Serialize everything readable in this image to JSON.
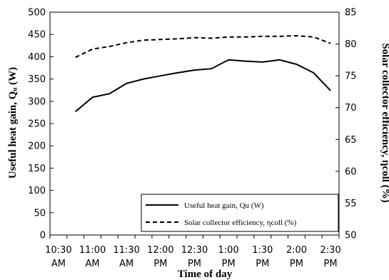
{
  "chart_data": {
    "type": "line",
    "x": [
      "10:30 AM",
      "10:45 AM",
      "11:00 AM",
      "11:15 AM",
      "11:30 AM",
      "11:45 AM",
      "12:00 PM",
      "12:15 PM",
      "12:30 PM",
      "12:45 PM",
      "1:00 PM",
      "1:15 PM",
      "1:30 PM",
      "1:45 PM",
      "2:00 PM",
      "2:15 PM",
      "2:30 PM"
    ],
    "x_tick_labels": [
      {
        "top": "10:30",
        "bottom": "AM"
      },
      {
        "top": "11:00",
        "bottom": "AM"
      },
      {
        "top": "11:30",
        "bottom": "AM"
      },
      {
        "top": "12:00",
        "bottom": "PM"
      },
      {
        "top": "12:30",
        "bottom": "PM"
      },
      {
        "top": "1:00",
        "bottom": "PM"
      },
      {
        "top": "1:30",
        "bottom": "PM"
      },
      {
        "top": "2:00",
        "bottom": "PM"
      },
      {
        "top": "2:30",
        "bottom": "PM"
      }
    ],
    "xlabel": "Time of day",
    "ylabel_left": "Useful heat gain, Qᵤ (W)",
    "ylabel_right": "Solar collector efficiency, ηcoll (%)",
    "ylim_left": [
      0,
      500
    ],
    "yticks_left": [
      0,
      50,
      100,
      150,
      200,
      250,
      300,
      350,
      400,
      450,
      500
    ],
    "ylim_right": [
      50,
      85
    ],
    "yticks_right": [
      50,
      55,
      60,
      65,
      70,
      75,
      80,
      85
    ],
    "grid": false,
    "legend_position": "bottom-right",
    "series": [
      {
        "name": "Useful heat gain, Qu (W)",
        "axis": "left",
        "style": "solid",
        "color": "#000000",
        "x": [
          "10:45 AM",
          "11:00 AM",
          "11:15 AM",
          "11:30 AM",
          "11:45 AM",
          "12:00 PM",
          "12:15 PM",
          "12:30 PM",
          "12:45 PM",
          "1:00 PM",
          "1:15 PM",
          "1:30 PM",
          "1:45 PM",
          "2:00 PM",
          "2:15 PM",
          "2:30 PM"
        ],
        "values": [
          277,
          309,
          317,
          340,
          350,
          357,
          364,
          370,
          373,
          393,
          390,
          388,
          393,
          383,
          364,
          324
        ]
      },
      {
        "name": "Solar collector efficiency, ηcoll (%)",
        "axis": "right",
        "style": "dashed",
        "color": "#000000",
        "x": [
          "10:45 AM",
          "11:00 AM",
          "11:15 AM",
          "11:30 AM",
          "11:45 AM",
          "12:00 PM",
          "12:15 PM",
          "12:30 PM",
          "12:45 PM",
          "1:00 PM",
          "1:15 PM",
          "1:30 PM",
          "1:45 PM",
          "2:00 PM",
          "2:15 PM",
          "2:30 PM"
        ],
        "values": [
          77.9,
          79.2,
          79.6,
          80.2,
          80.6,
          80.7,
          80.8,
          81.0,
          80.9,
          81.1,
          81.1,
          81.2,
          81.2,
          81.3,
          81.1,
          80.1
        ]
      }
    ]
  }
}
